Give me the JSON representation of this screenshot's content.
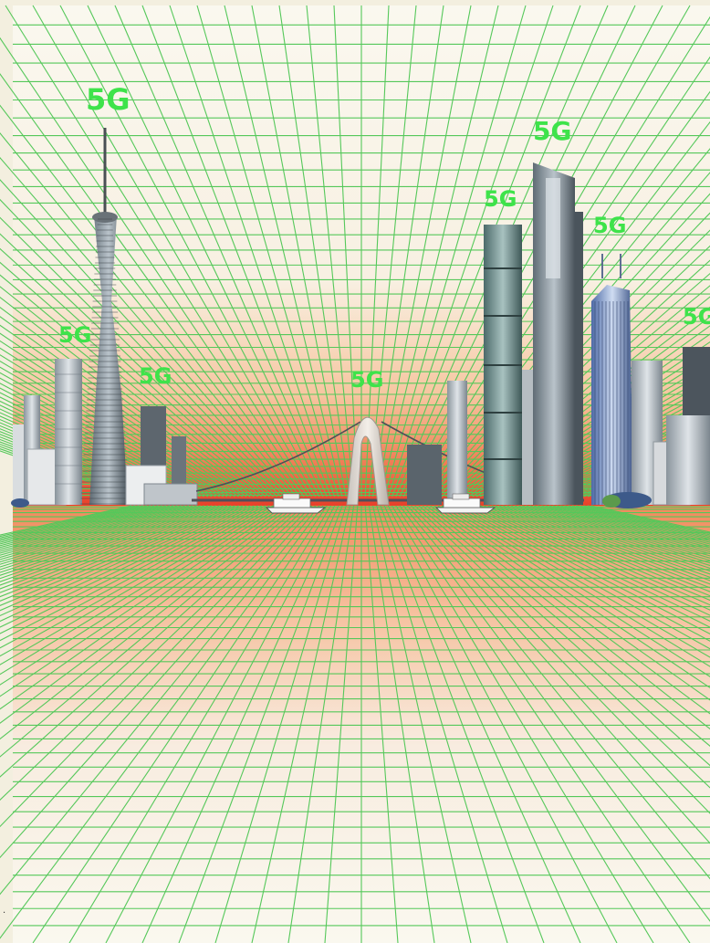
{
  "illustration": {
    "network_label": "5G",
    "colors": {
      "grid": "#55c85a",
      "sky_top": "#faf8ef",
      "horizon_glow": "#ee4a2c",
      "ground": "#f08a5c",
      "label": "#3ee34a"
    },
    "labels": [
      {
        "id": "tower",
        "text": "5G"
      },
      {
        "id": "left-tower",
        "text": "5G"
      },
      {
        "id": "left-mid",
        "text": "5G"
      },
      {
        "id": "arch",
        "text": "5G"
      },
      {
        "id": "teal-tower",
        "text": "5G"
      },
      {
        "id": "tall-tower",
        "text": "5G"
      },
      {
        "id": "blue-tower",
        "text": "5G"
      },
      {
        "id": "edge",
        "text": "5G"
      }
    ]
  }
}
